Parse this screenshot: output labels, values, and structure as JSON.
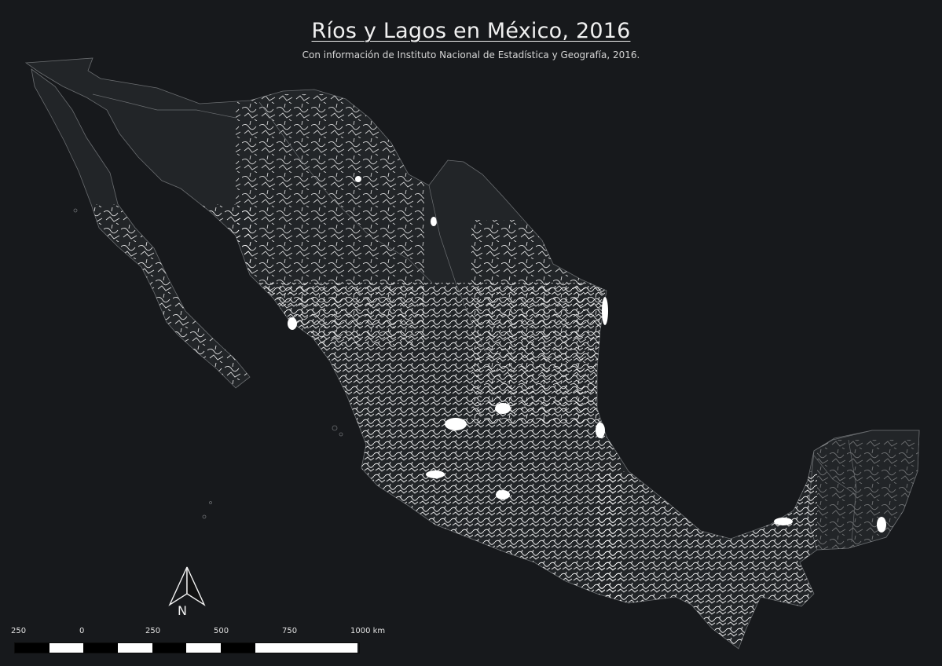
{
  "map": {
    "title": "Ríos y Lagos en México, 2016",
    "subtitle": "Con información de Instituto Nacional de Estadística y Geografía, 2016.",
    "background_color": "#17191c",
    "land_color": "#222528",
    "border_color": "#6a6d70",
    "river_color": "#ffffff"
  },
  "north_arrow": {
    "label": "N"
  },
  "scale_bar": {
    "tick_labels": [
      "250",
      "0",
      "250",
      "500",
      "750",
      "1000 km"
    ],
    "colors": [
      "#000000",
      "#ffffff",
      "#000000",
      "#ffffff",
      "#000000",
      "#ffffff",
      "#000000",
      "#ffffff"
    ]
  }
}
